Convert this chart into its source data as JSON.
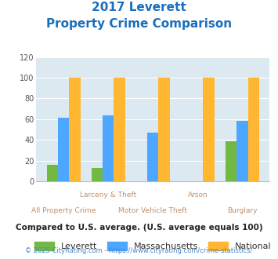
{
  "title_line1": "2017 Leverett",
  "title_line2": "Property Crime Comparison",
  "categories": [
    "All Property Crime",
    "Larceny & Theft",
    "Motor Vehicle Theft",
    "Arson",
    "Burglary"
  ],
  "x_labels_top": [
    "",
    "Larceny & Theft",
    "",
    "Arson",
    ""
  ],
  "x_labels_bottom": [
    "All Property Crime",
    "",
    "Motor Vehicle Theft",
    "",
    "Burglary"
  ],
  "leverett": [
    16,
    13,
    0,
    0,
    39
  ],
  "massachusetts": [
    61,
    64,
    47,
    0,
    58
  ],
  "national": [
    100,
    100,
    100,
    100,
    100
  ],
  "leverett_color": "#72b944",
  "massachusetts_color": "#4da6ff",
  "national_color": "#ffb732",
  "ylim": [
    0,
    120
  ],
  "yticks": [
    0,
    20,
    40,
    60,
    80,
    100,
    120
  ],
  "plot_bg": "#dce9f0",
  "title_color": "#1a6ebd",
  "xlabel_color": "#c0906a",
  "legend_label_color": "#333333",
  "legend_labels": [
    "Leverett",
    "Massachusetts",
    "National"
  ],
  "footnote1": "Compared to U.S. average. (U.S. average equals 100)",
  "footnote2": "© 2025 CityRating.com - https://www.cityrating.com/crime-statistics/",
  "footnote1_color": "#222222",
  "footnote2_color": "#4488cc"
}
